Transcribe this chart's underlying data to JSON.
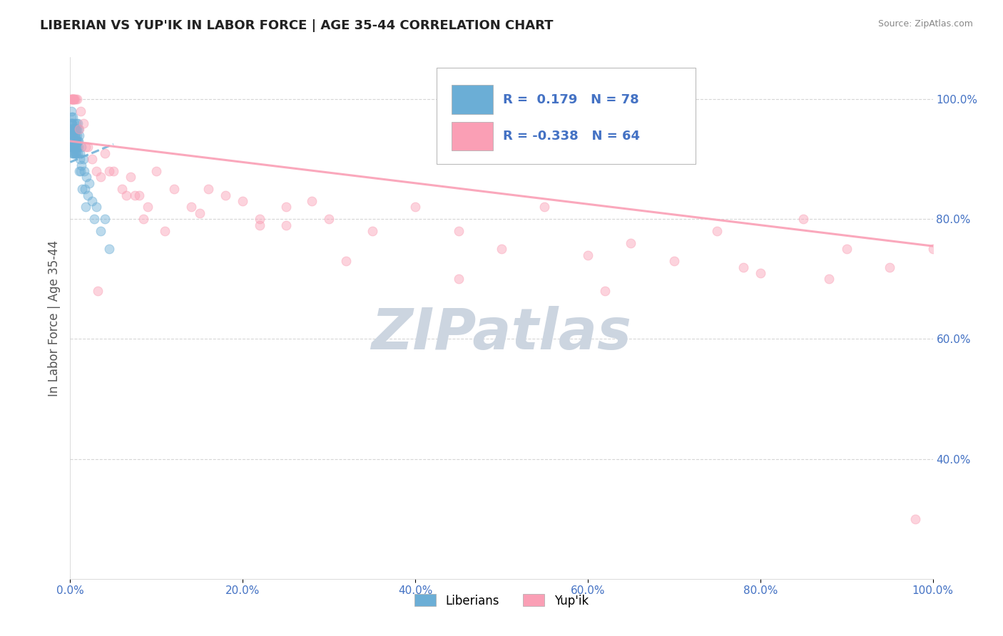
{
  "title": "LIBERIAN VS YUP'IK IN LABOR FORCE | AGE 35-44 CORRELATION CHART",
  "source": "Source: ZipAtlas.com",
  "ylabel": "In Labor Force | Age 35-44",
  "watermark": "ZIPatlas",
  "r_liberian": 0.179,
  "n_liberian": 78,
  "r_yupik": -0.338,
  "n_yupik": 64,
  "legend_liberian": "Liberians",
  "legend_yupik": "Yup'ik",
  "color_liberian": "#6baed6",
  "color_yupik": "#fa9fb5",
  "liberian_x": [
    0.05,
    0.08,
    0.1,
    0.12,
    0.13,
    0.15,
    0.18,
    0.2,
    0.22,
    0.25,
    0.28,
    0.3,
    0.32,
    0.35,
    0.38,
    0.4,
    0.42,
    0.45,
    0.48,
    0.5,
    0.52,
    0.55,
    0.58,
    0.6,
    0.62,
    0.65,
    0.68,
    0.7,
    0.72,
    0.75,
    0.78,
    0.8,
    0.82,
    0.85,
    0.88,
    0.9,
    0.92,
    0.95,
    0.98,
    1.0,
    1.05,
    1.1,
    1.15,
    1.2,
    1.25,
    1.3,
    1.4,
    1.5,
    1.6,
    1.7,
    1.8,
    1.9,
    2.0,
    2.2,
    2.5,
    2.8,
    3.0,
    3.5,
    4.0,
    4.5,
    0.06,
    0.09,
    0.11,
    0.14,
    0.17,
    0.21,
    0.24,
    0.27,
    0.31,
    0.36,
    0.44,
    0.47,
    0.53,
    0.57,
    0.63,
    0.67,
    0.73,
    0.77
  ],
  "liberian_y": [
    92,
    95,
    97,
    96,
    98,
    94,
    93,
    91,
    95,
    96,
    93,
    97,
    94,
    92,
    95,
    93,
    91,
    96,
    94,
    92,
    95,
    93,
    91,
    94,
    92,
    95,
    93,
    91,
    96,
    93,
    95,
    92,
    94,
    96,
    93,
    91,
    95,
    93,
    92,
    94,
    88,
    91,
    90,
    88,
    92,
    89,
    85,
    90,
    88,
    85,
    82,
    87,
    84,
    86,
    83,
    80,
    82,
    78,
    80,
    75,
    93,
    96,
    95,
    94,
    93,
    92,
    94,
    93,
    92,
    91,
    93,
    95,
    92,
    94,
    91,
    93,
    95,
    92
  ],
  "yupik_x": [
    0.1,
    0.15,
    0.2,
    0.25,
    0.3,
    0.35,
    0.4,
    0.5,
    0.6,
    0.8,
    1.0,
    1.2,
    1.5,
    2.0,
    2.5,
    3.0,
    3.5,
    4.0,
    5.0,
    6.0,
    7.0,
    8.0,
    9.0,
    10.0,
    12.0,
    14.0,
    16.0,
    18.0,
    20.0,
    22.0,
    25.0,
    28.0,
    30.0,
    35.0,
    40.0,
    45.0,
    50.0,
    55.0,
    60.0,
    65.0,
    70.0,
    75.0,
    80.0,
    85.0,
    90.0,
    95.0,
    100.0,
    3.2,
    4.5,
    6.5,
    8.5,
    11.0,
    15.0,
    22.0,
    32.0,
    45.0,
    62.0,
    78.0,
    88.0,
    98.0,
    0.45,
    1.8,
    7.5,
    25.0
  ],
  "yupik_y": [
    100,
    100,
    100,
    100,
    100,
    100,
    100,
    100,
    100,
    100,
    95,
    98,
    96,
    92,
    90,
    88,
    87,
    91,
    88,
    85,
    87,
    84,
    82,
    88,
    85,
    82,
    85,
    84,
    83,
    80,
    79,
    83,
    80,
    78,
    82,
    78,
    75,
    82,
    74,
    76,
    73,
    78,
    71,
    80,
    75,
    72,
    75,
    68,
    88,
    84,
    80,
    78,
    81,
    79,
    73,
    70,
    68,
    72,
    70,
    30,
    100,
    92,
    84,
    82
  ],
  "liberian_trendline_x": [
    0.0,
    5.0
  ],
  "liberian_trendline_y_start": 89.5,
  "liberian_trendline_y_end": 92.5,
  "yupik_trendline_x": [
    0.0,
    100.0
  ],
  "yupik_trendline_y_start": 93.0,
  "yupik_trendline_y_end": 75.5,
  "xmin": 0.0,
  "xmax": 100.0,
  "ymin": 20.0,
  "ymax": 107.0,
  "xticks": [
    0.0,
    20.0,
    40.0,
    60.0,
    80.0,
    100.0
  ],
  "xticklabels": [
    "0.0%",
    "20.0%",
    "40.0%",
    "60.0%",
    "80.0%",
    "100.0%"
  ],
  "yticks_right": [
    40.0,
    60.0,
    80.0,
    100.0
  ],
  "yticklabels_right": [
    "40.0%",
    "60.0%",
    "80.0%",
    "100.0%"
  ],
  "grid_color": "#cccccc",
  "bg_color": "#ffffff",
  "title_color": "#222222",
  "axis_label_color": "#555555",
  "tick_label_color": "#4472c4",
  "watermark_color": "#ccd5e0",
  "marker_size": 85,
  "marker_alpha": 0.45,
  "line_width": 2.2,
  "dashed_line_color": "#aaaadd"
}
